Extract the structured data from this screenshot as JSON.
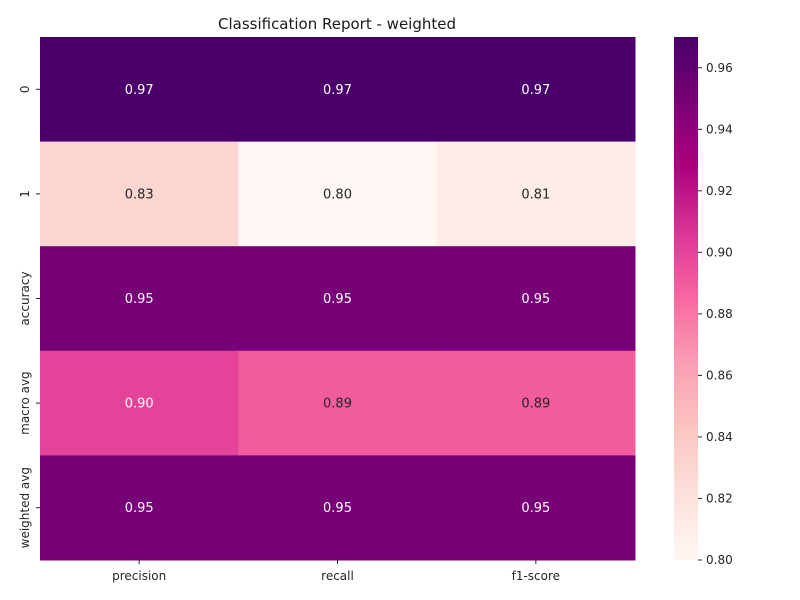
{
  "chart_data": {
    "type": "heatmap",
    "title": "Classification Report - weighted",
    "rows": [
      "0",
      "1",
      "accuracy",
      "macro avg",
      "weighted avg"
    ],
    "columns": [
      "precision",
      "recall",
      "f1-score"
    ],
    "values": [
      [
        0.97,
        0.97,
        0.97
      ],
      [
        0.83,
        0.8,
        0.81
      ],
      [
        0.95,
        0.95,
        0.95
      ],
      [
        0.9,
        0.89,
        0.89
      ],
      [
        0.95,
        0.95,
        0.95
      ]
    ],
    "value_labels": [
      [
        "0.97",
        "0.97",
        "0.97"
      ],
      [
        "0.83",
        "0.80",
        "0.81"
      ],
      [
        "0.95",
        "0.95",
        "0.95"
      ],
      [
        "0.90",
        "0.89",
        "0.89"
      ],
      [
        "0.95",
        "0.95",
        "0.95"
      ]
    ],
    "colorbar": {
      "range": [
        0.8,
        0.97
      ],
      "ticks": [
        "0.80",
        "0.82",
        "0.84",
        "0.86",
        "0.88",
        "0.90",
        "0.92",
        "0.94",
        "0.96"
      ],
      "colormap": "RdPu",
      "colors": [
        "#fff7f3",
        "#fde0dd",
        "#fcc5c0",
        "#fa9fb5",
        "#f768a1",
        "#dd3497",
        "#ae017e",
        "#7a0177",
        "#49006a"
      ]
    }
  }
}
